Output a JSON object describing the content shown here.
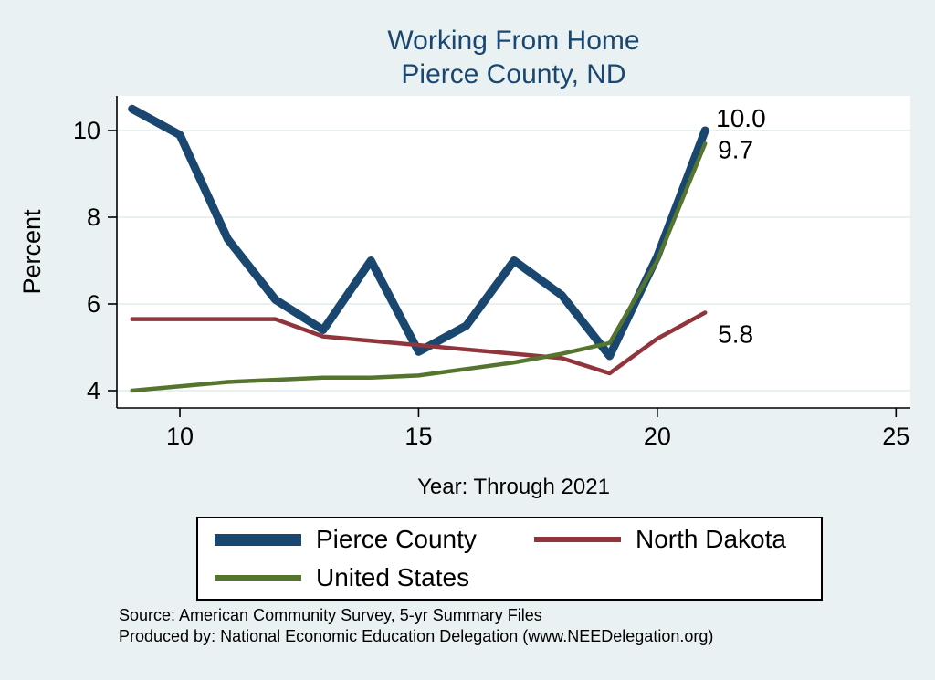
{
  "page": {
    "background": "#e9f1f3"
  },
  "title": {
    "line1": "Working From Home",
    "line2": "Pierce County, ND",
    "color": "#1a476f"
  },
  "chart_data": {
    "type": "line",
    "title": "Working From Home Pierce County, ND",
    "xlabel": "Year: Through 2021",
    "ylabel": "Percent",
    "xlim": [
      8.68,
      25.3
    ],
    "ylim": [
      3.6,
      10.8
    ],
    "xticks": [
      10,
      15,
      20,
      25
    ],
    "yticks": [
      4,
      6,
      8,
      10
    ],
    "grid": "horizontal",
    "grid_color": "#d9e6e8",
    "plot_bg": "#ffffff",
    "axis_color": "#000000",
    "x": [
      9,
      10,
      11,
      12,
      13,
      14,
      15,
      16,
      17,
      18,
      19,
      20,
      21
    ],
    "series": [
      {
        "name": "Pierce County",
        "color": "#1a476f",
        "stroke_width": 9,
        "values": [
          10.5,
          9.9,
          7.5,
          6.1,
          5.4,
          7.0,
          4.9,
          5.5,
          7.0,
          6.2,
          4.8,
          7.1,
          10.0
        ],
        "end_label": "10.0",
        "label_dx": 12,
        "label_dy": -4
      },
      {
        "name": "North Dakota",
        "color": "#90353b",
        "stroke_width": 4.5,
        "values": [
          5.65,
          5.65,
          5.65,
          5.65,
          5.25,
          5.15,
          5.05,
          4.95,
          4.85,
          4.75,
          4.4,
          5.2,
          5.8
        ],
        "end_label": "5.8",
        "label_dx": 14,
        "label_dy": 33
      },
      {
        "name": "United States",
        "color": "#55752f",
        "stroke_width": 4.5,
        "values": [
          4.0,
          4.1,
          4.2,
          4.25,
          4.3,
          4.3,
          4.35,
          4.5,
          4.65,
          4.85,
          5.1,
          7.0,
          9.7
        ],
        "end_label": "9.7",
        "label_dx": 14,
        "label_dy": 16
      }
    ],
    "legend_position": "bottom"
  },
  "legend": {
    "items": [
      {
        "label": "Pierce County",
        "color": "#1a476f",
        "thick": true
      },
      {
        "label": "North Dakota",
        "color": "#90353b",
        "thick": false
      },
      {
        "label": "United States",
        "color": "#55752f",
        "thick": false
      }
    ]
  },
  "footer": {
    "source": "Source: American Community Survey, 5-yr Summary Files",
    "produced_by": "Produced by: National Economic Education Delegation (www.NEEDelegation.org)"
  }
}
